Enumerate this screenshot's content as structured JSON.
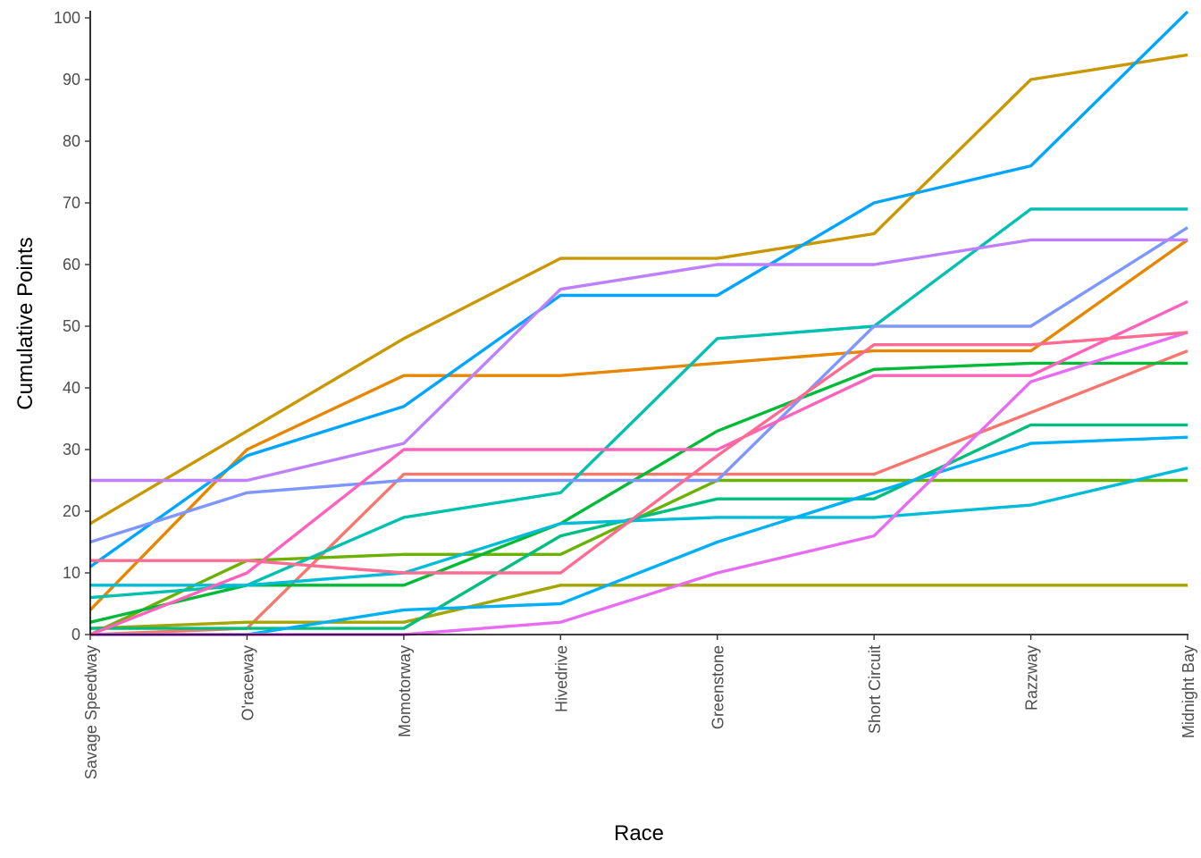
{
  "chart_data": {
    "type": "line",
    "title": "",
    "xlabel": "Race",
    "ylabel": "Cumulative Points",
    "categories": [
      "Savage Speedway",
      "O'raceway",
      "Momotorway",
      "Hivedrive",
      "Greenstone",
      "Short Circuit",
      "Razzway",
      "Midnight Bay"
    ],
    "ylim": [
      0,
      100
    ],
    "yticks": [
      "0",
      "10",
      "20",
      "30",
      "40",
      "50",
      "60",
      "70",
      "80",
      "90",
      "100"
    ],
    "grid": false,
    "legend": "none",
    "series": [
      {
        "color": "#F8766D",
        "values": [
          0,
          1,
          26,
          26,
          26,
          26,
          36,
          46
        ]
      },
      {
        "color": "#E58700",
        "values": [
          4,
          30,
          42,
          42,
          44,
          46,
          46,
          64
        ]
      },
      {
        "color": "#C99800",
        "values": [
          18,
          33,
          48,
          61,
          61,
          65,
          90,
          94
        ]
      },
      {
        "color": "#A3A500",
        "values": [
          1,
          2,
          2,
          8,
          8,
          8,
          8,
          8
        ]
      },
      {
        "color": "#6BB100",
        "values": [
          0,
          12,
          13,
          13,
          25,
          25,
          25,
          25
        ]
      },
      {
        "color": "#00BA38",
        "values": [
          2,
          8,
          8,
          18,
          33,
          43,
          44,
          44
        ]
      },
      {
        "color": "#00BF7D",
        "values": [
          1,
          1,
          1,
          16,
          22,
          22,
          34,
          34
        ]
      },
      {
        "color": "#00C0AF",
        "values": [
          6,
          8,
          19,
          23,
          48,
          50,
          69,
          69
        ]
      },
      {
        "color": "#00BCD8",
        "values": [
          8,
          8,
          10,
          18,
          19,
          19,
          21,
          27
        ]
      },
      {
        "color": "#00B0F6",
        "values": [
          0,
          0,
          4,
          5,
          15,
          23,
          31,
          32
        ]
      },
      {
        "color": "#00A5FF",
        "values": [
          11,
          29,
          37,
          55,
          55,
          70,
          76,
          101
        ]
      },
      {
        "color": "#7F96FF",
        "values": [
          15,
          23,
          25,
          25,
          25,
          50,
          50,
          66
        ]
      },
      {
        "color": "#BF80FF",
        "values": [
          25,
          25,
          31,
          56,
          60,
          60,
          64,
          64
        ]
      },
      {
        "color": "#E76BF3",
        "values": [
          0,
          0,
          0,
          2,
          10,
          16,
          41,
          49
        ]
      },
      {
        "color": "#FF62BC",
        "values": [
          0,
          10,
          30,
          30,
          30,
          42,
          42,
          54
        ]
      },
      {
        "color": "#FF6C91",
        "values": [
          12,
          12,
          10,
          10,
          29,
          47,
          47,
          49
        ]
      }
    ]
  }
}
